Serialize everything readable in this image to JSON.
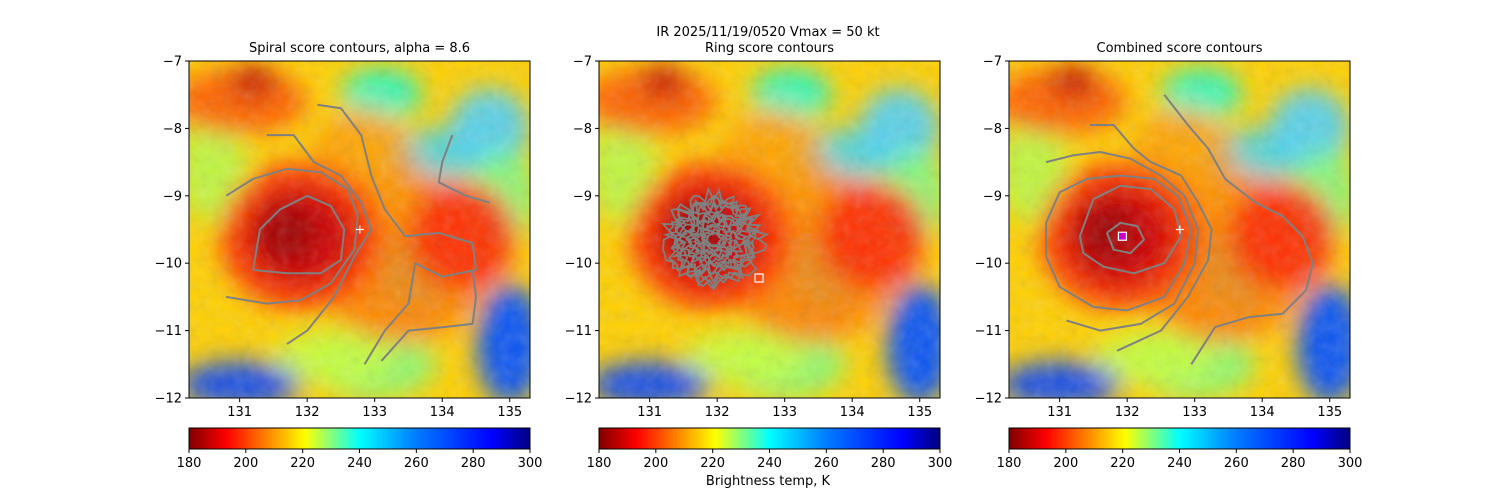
{
  "figure": {
    "suptitle": "IR  2025/11/19/0520    Vmax = 50 kt",
    "colorbar_label": "Brightness temp, K"
  },
  "chart_data": [
    {
      "type": "heatmap",
      "title": "Spiral score contours, alpha =  8.6",
      "xlim": [
        130.25,
        135.3
      ],
      "ylim": [
        -12,
        -7
      ],
      "xticks": [
        131,
        132,
        133,
        134,
        135
      ],
      "yticks": [
        -7,
        -8,
        -9,
        -10,
        -11,
        -12
      ],
      "xtick_labels": [
        "131",
        "132",
        "133",
        "134",
        "135"
      ],
      "ytick_labels": [
        "−7",
        "−8",
        "−9",
        "−10",
        "−11",
        "−12"
      ],
      "colorbar": {
        "min": 180,
        "max": 300,
        "ticks": [
          "180",
          "200",
          "220",
          "240",
          "260",
          "280",
          "300"
        ],
        "cmap": "jet_r"
      },
      "marker": {
        "kind": "plus",
        "x": 132.78,
        "y": -9.5,
        "color": "#ffffff"
      },
      "contours": [
        [
          [
            131.2,
            -10.1
          ],
          [
            131.3,
            -9.5
          ],
          [
            131.6,
            -9.2
          ],
          [
            132.0,
            -9.0
          ],
          [
            132.35,
            -9.15
          ],
          [
            132.55,
            -9.5
          ],
          [
            132.5,
            -9.95
          ],
          [
            132.2,
            -10.15
          ],
          [
            131.7,
            -10.15
          ],
          [
            131.2,
            -10.1
          ]
        ],
        [
          [
            130.8,
            -9.0
          ],
          [
            131.2,
            -8.75
          ],
          [
            131.7,
            -8.6
          ],
          [
            132.2,
            -8.65
          ],
          [
            132.6,
            -8.9
          ],
          [
            132.75,
            -9.3
          ],
          [
            132.7,
            -9.8
          ],
          [
            132.35,
            -10.3
          ],
          [
            131.9,
            -10.55
          ],
          [
            131.4,
            -10.6
          ],
          [
            130.8,
            -10.5
          ]
        ],
        [
          [
            131.4,
            -8.1
          ],
          [
            131.8,
            -8.1
          ],
          [
            132.1,
            -8.5
          ],
          [
            132.5,
            -8.7
          ],
          [
            132.8,
            -9.1
          ],
          [
            132.95,
            -9.5
          ],
          [
            132.7,
            -9.9
          ],
          [
            132.4,
            -10.5
          ],
          [
            132.0,
            -11.0
          ],
          [
            131.7,
            -11.2
          ]
        ],
        [
          [
            132.15,
            -7.65
          ],
          [
            132.5,
            -7.7
          ],
          [
            132.8,
            -8.1
          ],
          [
            132.95,
            -8.7
          ],
          [
            133.15,
            -9.2
          ],
          [
            133.45,
            -9.6
          ],
          [
            133.95,
            -9.55
          ],
          [
            134.45,
            -9.7
          ],
          [
            134.5,
            -10.1
          ],
          [
            134.0,
            -10.2
          ],
          [
            133.6,
            -10.0
          ],
          [
            133.5,
            -10.6
          ],
          [
            133.15,
            -11.0
          ],
          [
            132.85,
            -11.5
          ]
        ],
        [
          [
            134.15,
            -8.1
          ],
          [
            134.0,
            -8.5
          ],
          [
            133.95,
            -8.8
          ],
          [
            134.35,
            -9.0
          ],
          [
            134.7,
            -9.1
          ]
        ],
        [
          [
            133.1,
            -11.45
          ],
          [
            133.5,
            -11.0
          ],
          [
            134.0,
            -10.95
          ],
          [
            134.45,
            -10.9
          ],
          [
            134.5,
            -10.5
          ],
          [
            134.45,
            -10.1
          ]
        ]
      ]
    },
    {
      "type": "heatmap",
      "title": "Ring score contours",
      "xlim": [
        130.25,
        135.3
      ],
      "ylim": [
        -12,
        -7
      ],
      "xticks": [
        131,
        132,
        133,
        134,
        135
      ],
      "yticks": [
        -7,
        -8,
        -9,
        -10,
        -11,
        -12
      ],
      "xtick_labels": [
        "131",
        "132",
        "133",
        "134",
        "135"
      ],
      "ytick_labels": [
        "−7",
        "−8",
        "−9",
        "−10",
        "−11",
        "−12"
      ],
      "colorbar": {
        "min": 180,
        "max": 300,
        "ticks": [
          "180",
          "200",
          "220",
          "240",
          "260",
          "280",
          "300"
        ],
        "cmap": "jet_r"
      },
      "marker": {
        "kind": "square",
        "x": 132.62,
        "y": -10.22,
        "color": "#ffffff"
      },
      "ring_center": [
        131.95,
        -9.65
      ],
      "ring_radius": [
        0.68,
        0.65
      ],
      "contours": []
    },
    {
      "type": "heatmap",
      "title": "Combined score contours",
      "xlim": [
        130.25,
        135.3
      ],
      "ylim": [
        -12,
        -7
      ],
      "xticks": [
        131,
        132,
        133,
        134,
        135
      ],
      "yticks": [
        -7,
        -8,
        -9,
        -10,
        -11,
        -12
      ],
      "xtick_labels": [
        "131",
        "132",
        "133",
        "134",
        "135"
      ],
      "ytick_labels": [
        "−7",
        "−8",
        "−9",
        "−10",
        "−11",
        "−12"
      ],
      "colorbar": {
        "min": 180,
        "max": 300,
        "ticks": [
          "180",
          "200",
          "220",
          "240",
          "260",
          "280",
          "300"
        ],
        "cmap": "jet_r"
      },
      "marker": {
        "kind": "plus",
        "x": 132.78,
        "y": -9.5,
        "color": "#ffffff"
      },
      "marker2": {
        "kind": "square",
        "x": 131.93,
        "y": -9.6,
        "color": "#ffffff",
        "fill": "#cc00cc"
      },
      "contours": [
        [
          [
            131.7,
            -9.55
          ],
          [
            131.9,
            -9.4
          ],
          [
            132.15,
            -9.45
          ],
          [
            132.25,
            -9.65
          ],
          [
            132.05,
            -9.85
          ],
          [
            131.8,
            -9.8
          ],
          [
            131.7,
            -9.55
          ]
        ],
        [
          [
            131.3,
            -9.6
          ],
          [
            131.5,
            -9.05
          ],
          [
            131.9,
            -8.85
          ],
          [
            132.35,
            -8.9
          ],
          [
            132.7,
            -9.2
          ],
          [
            132.8,
            -9.6
          ],
          [
            132.55,
            -10.0
          ],
          [
            132.1,
            -10.15
          ],
          [
            131.65,
            -10.05
          ],
          [
            131.35,
            -9.85
          ],
          [
            131.3,
            -9.6
          ]
        ],
        [
          [
            130.8,
            -9.4
          ],
          [
            131.0,
            -8.95
          ],
          [
            131.4,
            -8.75
          ],
          [
            131.9,
            -8.7
          ],
          [
            132.4,
            -8.75
          ],
          [
            132.75,
            -9.0
          ],
          [
            132.95,
            -9.5
          ],
          [
            132.85,
            -10.0
          ],
          [
            132.55,
            -10.5
          ],
          [
            132.0,
            -10.7
          ],
          [
            131.5,
            -10.65
          ],
          [
            131.0,
            -10.35
          ],
          [
            130.8,
            -9.9
          ],
          [
            130.8,
            -9.4
          ]
        ],
        [
          [
            130.8,
            -8.5
          ],
          [
            131.2,
            -8.4
          ],
          [
            131.6,
            -8.35
          ],
          [
            132.05,
            -8.45
          ],
          [
            132.5,
            -8.7
          ],
          [
            132.85,
            -9.0
          ],
          [
            133.05,
            -9.5
          ],
          [
            133.0,
            -10.0
          ],
          [
            132.7,
            -10.6
          ],
          [
            132.2,
            -10.9
          ],
          [
            131.6,
            -11.0
          ],
          [
            131.1,
            -10.85
          ]
        ],
        [
          [
            131.45,
            -7.95
          ],
          [
            131.8,
            -7.95
          ],
          [
            132.1,
            -8.3
          ],
          [
            132.35,
            -8.5
          ],
          [
            132.8,
            -8.7
          ],
          [
            133.05,
            -9.1
          ],
          [
            133.25,
            -9.5
          ],
          [
            133.2,
            -9.95
          ],
          [
            132.9,
            -10.5
          ],
          [
            132.5,
            -11.0
          ],
          [
            131.85,
            -11.3
          ]
        ],
        [
          [
            132.55,
            -7.5
          ],
          [
            132.9,
            -7.95
          ],
          [
            133.2,
            -8.3
          ],
          [
            133.45,
            -8.75
          ],
          [
            133.9,
            -9.1
          ],
          [
            134.3,
            -9.3
          ],
          [
            134.6,
            -9.6
          ],
          [
            134.75,
            -10.0
          ],
          [
            134.65,
            -10.4
          ],
          [
            134.3,
            -10.75
          ],
          [
            133.8,
            -10.8
          ],
          [
            133.3,
            -10.95
          ],
          [
            132.95,
            -11.5
          ]
        ]
      ]
    }
  ]
}
